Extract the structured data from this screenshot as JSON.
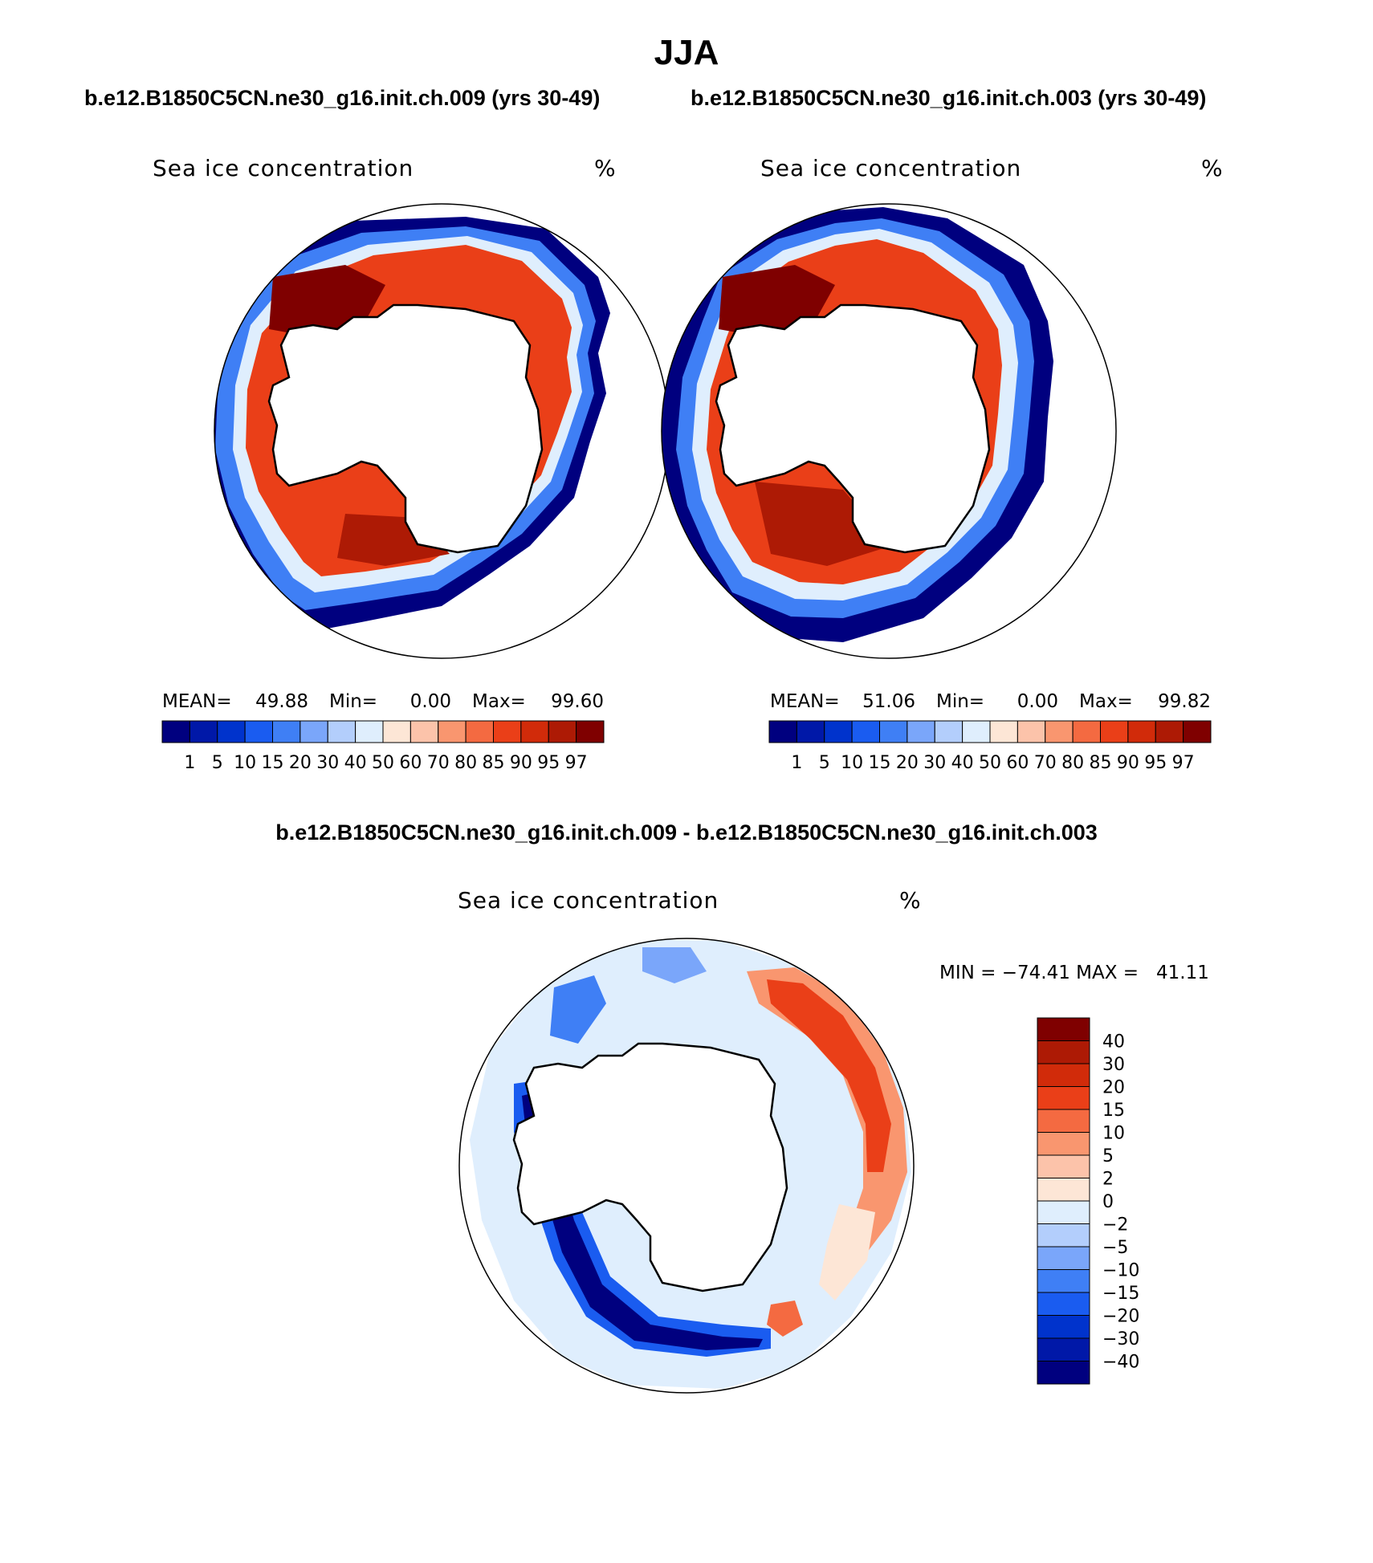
{
  "title": "JJA",
  "colors": {
    "concentration_scale": [
      "#00007f",
      "#0018a8",
      "#0033cc",
      "#1a5cf0",
      "#3f7ff5",
      "#7aa6fa",
      "#b3cefc",
      "#dfeefd",
      "#fde6d6",
      "#fcc3aa",
      "#f9966f",
      "#f46a41",
      "#ea3f18",
      "#d12b0a",
      "#ad1a05",
      "#7f0000"
    ],
    "difference_scale": [
      "#7f0000",
      "#ad1a05",
      "#d12b0a",
      "#ea3f18",
      "#f46a41",
      "#f9966f",
      "#fcc3aa",
      "#fde6d6",
      "#dfeefd",
      "#b3cefc",
      "#7aa6fa",
      "#3f7ff5",
      "#1a5cf0",
      "#0033cc",
      "#0018a8",
      "#00007f"
    ]
  },
  "chart_data": [
    {
      "type": "heatmap",
      "projection": "south-polar-stereographic",
      "case_title": "b.e12.B1850C5CN.ne30_g16.init.ch.009 (yrs 30-49)",
      "variable": "Sea ice concentration",
      "units": "%",
      "stats": {
        "mean_label": "MEAN=",
        "mean": "49.88",
        "min_label": "Min=",
        "min": "0.00",
        "max_label": "Max=",
        "max": "99.60"
      },
      "colorbar_labels": [
        "1",
        "5",
        "10",
        "15",
        "20",
        "30",
        "40",
        "50",
        "60",
        "70",
        "80",
        "85",
        "90",
        "95",
        "97"
      ]
    },
    {
      "type": "heatmap",
      "projection": "south-polar-stereographic",
      "case_title": "b.e12.B1850C5CN.ne30_g16.init.ch.003 (yrs 30-49)",
      "variable": "Sea ice concentration",
      "units": "%",
      "stats": {
        "mean_label": "MEAN=",
        "mean": "51.06",
        "min_label": "Min=",
        "min": "0.00",
        "max_label": "Max=",
        "max": "99.82"
      },
      "colorbar_labels": [
        "1",
        "5",
        "10",
        "15",
        "20",
        "30",
        "40",
        "50",
        "60",
        "70",
        "80",
        "85",
        "90",
        "95",
        "97"
      ]
    },
    {
      "type": "heatmap",
      "projection": "south-polar-stereographic",
      "case_title": "b.e12.B1850C5CN.ne30_g16.init.ch.009 - b.e12.B1850C5CN.ne30_g16.init.ch.003",
      "variable": "Sea ice concentration",
      "units": "%",
      "minmax_text": "MIN = −74.41 MAX =   41.11",
      "min": -74.41,
      "max": 41.11,
      "colorbar_labels": [
        "40",
        "30",
        "20",
        "15",
        "10",
        "5",
        "2",
        "0",
        "−2",
        "−5",
        "−10",
        "−15",
        "−20",
        "−30",
        "−40"
      ]
    }
  ]
}
